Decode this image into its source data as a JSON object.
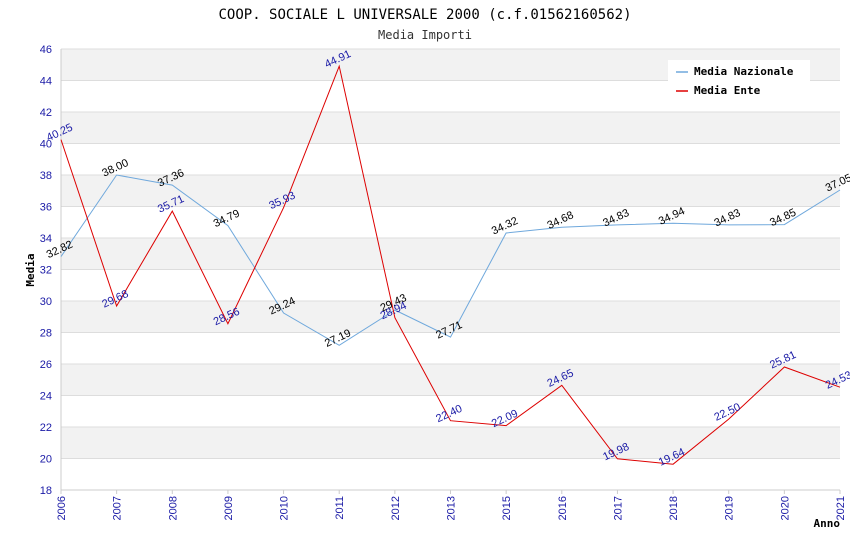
{
  "chart_data": {
    "type": "line",
    "title": "COOP. SOCIALE L UNIVERSALE 2000 (c.f.01562160562)",
    "subtitle": "Media Importi",
    "xlabel": "Anno",
    "ylabel": "Media",
    "ylim": [
      18,
      46
    ],
    "ystep": 2,
    "grid": true,
    "legend_position": "top-right",
    "x": [
      "2006",
      "2007",
      "2008",
      "2009",
      "2010",
      "2011",
      "2012",
      "2013",
      "2015",
      "2016",
      "2017",
      "2018",
      "2019",
      "2020",
      "2021"
    ],
    "series": [
      {
        "name": "Media Nazionale",
        "color": "#6fa8dc",
        "label_color": "#000000",
        "values": [
          32.82,
          38.0,
          37.36,
          34.79,
          29.24,
          27.19,
          29.43,
          27.71,
          34.32,
          34.68,
          34.83,
          34.94,
          34.83,
          34.85,
          37.05
        ],
        "labels": [
          "32.82",
          "38.00",
          "37.36",
          "34.79",
          "29.24",
          "27.19",
          "29.43",
          "27.71",
          "34.32",
          "34.68",
          "34.83",
          "34.94",
          "34.83",
          "34.85",
          "37.05"
        ]
      },
      {
        "name": "Media Ente",
        "color": "#dd0000",
        "label_color": "#1a1aa6",
        "values": [
          40.25,
          29.68,
          35.71,
          28.56,
          35.93,
          44.91,
          28.94,
          22.4,
          22.09,
          24.65,
          19.98,
          19.64,
          22.5,
          25.81,
          24.53
        ],
        "labels": [
          "40.25",
          "29.68",
          "35.71",
          "28.56",
          "35.93",
          "44.91",
          "28.94",
          "22.40",
          "22.09",
          "24.65",
          "19.98",
          "19.64",
          "22.50",
          "25.81",
          "24.53"
        ]
      }
    ]
  }
}
